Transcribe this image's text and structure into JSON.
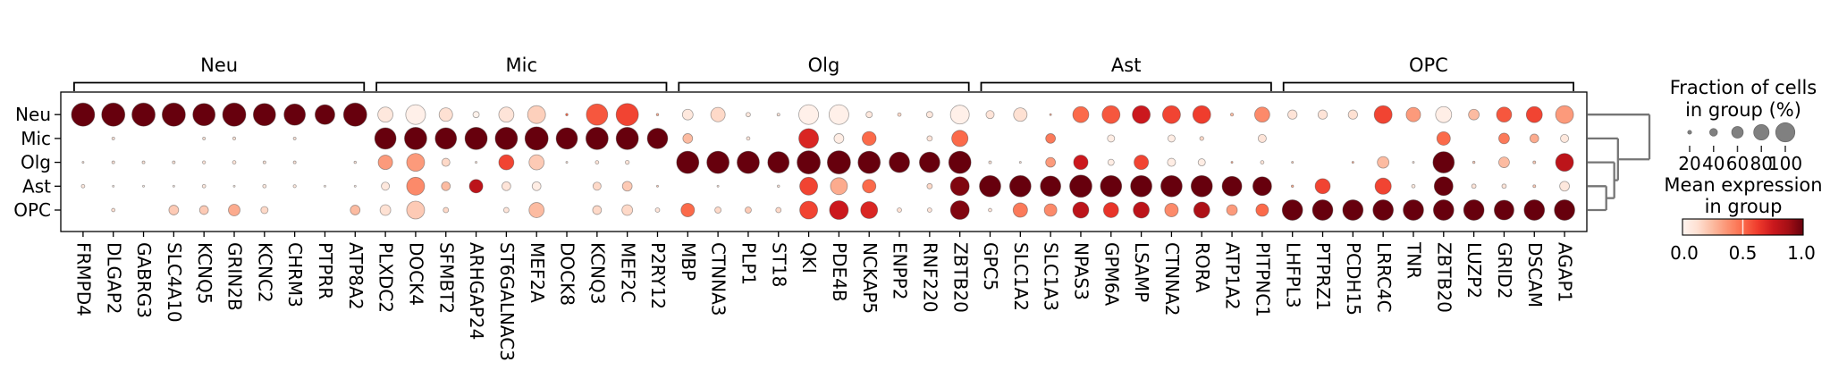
{
  "chart_data": {
    "type": "heatmap",
    "variant": "dotplot",
    "title": "",
    "rows": [
      "Neu",
      "Mic",
      "Olg",
      "Ast",
      "OPC"
    ],
    "column_groups": [
      {
        "label": "Neu",
        "genes": [
          "FRMPD4",
          "DLGAP2",
          "GABRG3",
          "SLC4A10",
          "KCNQ5",
          "GRIN2B",
          "KCNC2",
          "CHRM3",
          "PTPRR",
          "ATP8A2"
        ]
      },
      {
        "label": "Mic",
        "genes": [
          "PLXDC2",
          "DOCK4",
          "SFMBT2",
          "ARHGAP24",
          "ST6GALNAC3",
          "MEF2A",
          "DOCK8",
          "KCNQ3",
          "MEF2C",
          "P2RY12"
        ]
      },
      {
        "label": "Olg",
        "genes": [
          "MBP",
          "CTNNA3",
          "PLP1",
          "ST18",
          "QKI",
          "PDE4B",
          "NCKAP5",
          "ENPP2",
          "RNF220",
          "ZBTB20"
        ]
      },
      {
        "label": "Ast",
        "genes": [
          "GPC5",
          "SLC1A2",
          "SLC1A3",
          "NPAS3",
          "GPM6A",
          "LSAMP",
          "CTNNA2",
          "RORA",
          "ATP1A2",
          "PITPNC1"
        ]
      },
      {
        "label": "OPC",
        "genes": [
          "LHFPL3",
          "PTPRZ1",
          "PCDH15",
          "LRRC4C",
          "TNR",
          "ZBTB20",
          "LUZP2",
          "GRID2",
          "DSCAM",
          "AGAP1"
        ]
      }
    ],
    "fraction_pct": [
      [
        100,
        100,
        100,
        100,
        96,
        100,
        96,
        92,
        85,
        100,
        65,
        85,
        58,
        27,
        65,
        77,
        10,
        92,
        96,
        10,
        46,
        62,
        19,
        12,
        85,
        85,
        27,
        15,
        27,
        81,
        35,
        58,
        8,
        69,
        77,
        77,
        77,
        77,
        13,
        65,
        40,
        40,
        40,
        77,
        62,
        69,
        46,
        65,
        69,
        77
      ],
      [
        0,
        12,
        0,
        0,
        12,
        13,
        0,
        12,
        0,
        0,
        92,
        96,
        92,
        96,
        96,
        100,
        92,
        96,
        96,
        88,
        42,
        0,
        15,
        0,
        85,
        42,
        60,
        0,
        23,
        70,
        0,
        0,
        42,
        0,
        31,
        0,
        31,
        17,
        0,
        35,
        0,
        0,
        0,
        0,
        0,
        58,
        0,
        46,
        38,
        35
      ],
      [
        8,
        12,
        12,
        12,
        13,
        15,
        12,
        12,
        0,
        10,
        62,
        77,
        35,
        8,
        65,
        65,
        8,
        15,
        17,
        0,
        96,
        96,
        96,
        92,
        100,
        100,
        96,
        88,
        88,
        96,
        12,
        8,
        42,
        62,
        27,
        62,
        35,
        31,
        8,
        15,
        8,
        0,
        8,
        50,
        8,
        92,
        10,
        46,
        12,
        77
      ],
      [
        15,
        8,
        8,
        8,
        15,
        8,
        15,
        13,
        8,
        8,
        35,
        77,
        38,
        58,
        38,
        38,
        0,
        35,
        42,
        8,
        0,
        8,
        0,
        10,
        77,
        73,
        58,
        0,
        23,
        81,
        92,
        92,
        88,
        96,
        92,
        92,
        92,
        92,
        85,
        81,
        10,
        65,
        0,
        70,
        15,
        81,
        19,
        19,
        12,
        42
      ],
      [
        0,
        15,
        0,
        42,
        38,
        50,
        31,
        0,
        0,
        42,
        46,
        77,
        23,
        0,
        23,
        65,
        0,
        38,
        46,
        19,
        58,
        27,
        27,
        23,
        77,
        81,
        73,
        19,
        19,
        81,
        15,
        62,
        54,
        69,
        65,
        69,
        58,
        69,
        46,
        54,
        88,
        88,
        88,
        88,
        88,
        88,
        88,
        85,
        88,
        88
      ]
    ],
    "mean_expression": [
      [
        1,
        1,
        1,
        1,
        1,
        1,
        1,
        1,
        1,
        1,
        0.08,
        0.03,
        0.12,
        0.02,
        0.1,
        0.18,
        0.5,
        0.55,
        0.6,
        0.3,
        0.08,
        0.15,
        0.08,
        0.1,
        0.03,
        0.03,
        0.08,
        0.15,
        0.08,
        0.03,
        0.1,
        0.12,
        0.3,
        0.5,
        0.55,
        0.75,
        0.6,
        0.62,
        0.25,
        0.4,
        0.1,
        0.1,
        0.12,
        0.6,
        0.35,
        0.04,
        0.25,
        0.55,
        0.6,
        0.35
      ],
      [
        0,
        0.1,
        0,
        0,
        0.1,
        0.12,
        0,
        0.1,
        0,
        0,
        1,
        1,
        1,
        1,
        1,
        1,
        1,
        1,
        1,
        1,
        0.25,
        0,
        0.1,
        0,
        0.7,
        0.05,
        0.5,
        0,
        0.1,
        0.5,
        0,
        0,
        0.45,
        0,
        0.05,
        0,
        0.05,
        0.15,
        0,
        0.1,
        0,
        0,
        0,
        0,
        0,
        0.5,
        0,
        0.45,
        0.3,
        0.08
      ],
      [
        0.1,
        0.1,
        0.1,
        0.1,
        0.1,
        0.1,
        0.1,
        0.1,
        0,
        0.1,
        0.35,
        0.35,
        0.15,
        0.1,
        0.6,
        0.2,
        0.1,
        0.1,
        0.1,
        0,
        1,
        1,
        1,
        1,
        1,
        1,
        1,
        1,
        1,
        1,
        0.1,
        0.1,
        0.35,
        0.75,
        0.05,
        0.6,
        0.05,
        0.05,
        0.3,
        0.1,
        0.2,
        0,
        0.3,
        0.25,
        0.1,
        1,
        0.2,
        0.25,
        0.2,
        0.8
      ],
      [
        0.08,
        0.05,
        0.05,
        0.05,
        0.08,
        0.05,
        0.08,
        0.08,
        0.05,
        0.05,
        0.08,
        0.4,
        0.25,
        0.8,
        0.1,
        0.05,
        0,
        0.15,
        0.2,
        0.2,
        0,
        0.1,
        0,
        0.1,
        0.6,
        0.3,
        0.5,
        0,
        0.15,
        0.95,
        1,
        1,
        1,
        1,
        1,
        1,
        1,
        1,
        1,
        1,
        0.3,
        0.6,
        0,
        0.6,
        0.08,
        1,
        0.1,
        0.1,
        0.2,
        0.08
      ],
      [
        0,
        0.12,
        0,
        0.2,
        0.2,
        0.3,
        0.15,
        0,
        0,
        0.25,
        0.12,
        0.2,
        0.15,
        0,
        0.1,
        0.25,
        0,
        0.15,
        0.15,
        0.1,
        0.5,
        0.15,
        0.2,
        0.15,
        0.6,
        0.75,
        0.7,
        0.12,
        0.1,
        0.95,
        0.1,
        0.45,
        0.4,
        0.8,
        0.65,
        0.8,
        0.4,
        0.85,
        0.35,
        0.5,
        1,
        1,
        1,
        1,
        1,
        1,
        1,
        1,
        1,
        1
      ]
    ],
    "size_legend": {
      "title_line1": "Fraction of cells",
      "title_line2": "in group (%)",
      "ticks": [
        20,
        40,
        60,
        80,
        100
      ],
      "dot_color": "#808080"
    },
    "color_legend": {
      "title_line1": "Mean expression",
      "title_line2": "in group",
      "tick_labels": [
        "0.0",
        "0.5",
        "1.0"
      ]
    },
    "colormap": {
      "name": "Reds",
      "stops": [
        "#fff5f0",
        "#fee0d2",
        "#fcbba1",
        "#fc9272",
        "#fb6a4a",
        "#ef3b2c",
        "#cb181d",
        "#a50f15",
        "#67000d"
      ]
    },
    "dendrogram": {
      "leaf_order": [
        "Neu",
        "Mic",
        "Olg",
        "Ast",
        "OPC"
      ],
      "merges": [
        {
          "a": "Ast",
          "b": "OPC",
          "distance": 0.3
        },
        {
          "a": "Olg",
          "b": "m0",
          "distance": 0.43
        },
        {
          "a": "Mic",
          "b": "m1",
          "distance": 0.49
        },
        {
          "a": "Neu",
          "b": "m2",
          "distance": 1.0
        }
      ],
      "line_color": "#757575"
    }
  }
}
